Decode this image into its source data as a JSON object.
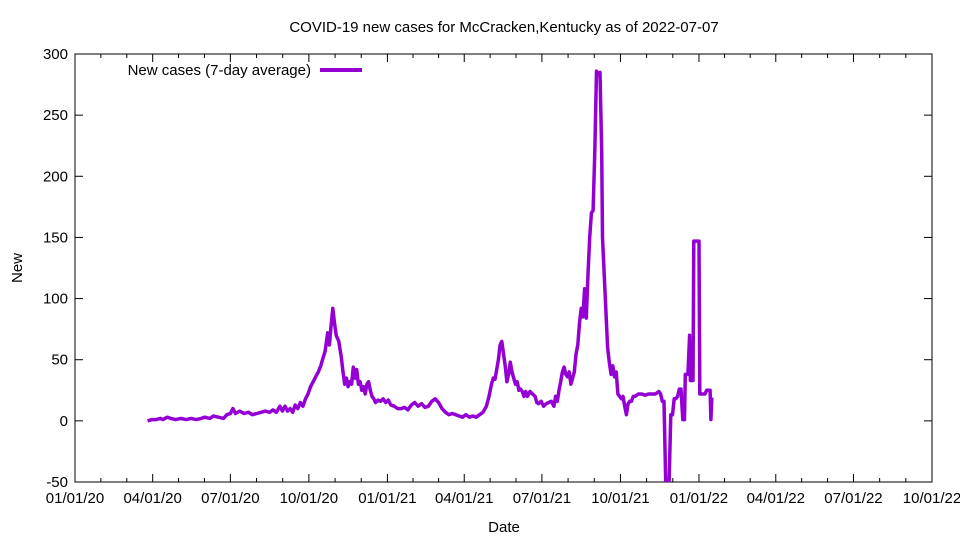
{
  "chart_data": {
    "type": "line",
    "title": "COVID-19 new cases for McCracken,Kentucky as of 2022-07-07",
    "xlabel": "Date",
    "ylabel": "New",
    "ylim": [
      -50,
      300
    ],
    "yticks": [
      -50,
      0,
      50,
      100,
      150,
      200,
      250,
      300
    ],
    "xlim_days": [
      0,
      1004
    ],
    "xticks": [
      {
        "label": "01/01/20",
        "day": 0
      },
      {
        "label": "04/01/20",
        "day": 91
      },
      {
        "label": "07/01/20",
        "day": 182
      },
      {
        "label": "10/01/20",
        "day": 274
      },
      {
        "label": "01/01/21",
        "day": 366
      },
      {
        "label": "04/01/21",
        "day": 456
      },
      {
        "label": "07/01/21",
        "day": 547
      },
      {
        "label": "10/01/21",
        "day": 639
      },
      {
        "label": "01/01/22",
        "day": 731
      },
      {
        "label": "04/01/22",
        "day": 821
      },
      {
        "label": "07/01/22",
        "day": 912
      },
      {
        "label": "10/01/22",
        "day": 1004
      }
    ],
    "legend": {
      "position": "top-left"
    },
    "color": "#9400d3",
    "series": [
      {
        "name": "New cases (7-day average)",
        "x_unit": "days since 2020-01-01",
        "points": [
          [
            85,
            0
          ],
          [
            90,
            1
          ],
          [
            95,
            1
          ],
          [
            100,
            2
          ],
          [
            103,
            1
          ],
          [
            108,
            3
          ],
          [
            112,
            2
          ],
          [
            118,
            1
          ],
          [
            124,
            2
          ],
          [
            130,
            1
          ],
          [
            136,
            2
          ],
          [
            142,
            1
          ],
          [
            148,
            2
          ],
          [
            152,
            3
          ],
          [
            158,
            2
          ],
          [
            162,
            4
          ],
          [
            168,
            3
          ],
          [
            174,
            2
          ],
          [
            178,
            5
          ],
          [
            182,
            6
          ],
          [
            185,
            10
          ],
          [
            188,
            6
          ],
          [
            193,
            8
          ],
          [
            198,
            6
          ],
          [
            203,
            7
          ],
          [
            208,
            5
          ],
          [
            213,
            6
          ],
          [
            218,
            7
          ],
          [
            223,
            8
          ],
          [
            228,
            7
          ],
          [
            232,
            9
          ],
          [
            236,
            7
          ],
          [
            240,
            12
          ],
          [
            243,
            8
          ],
          [
            246,
            12
          ],
          [
            249,
            8
          ],
          [
            252,
            10
          ],
          [
            255,
            7
          ],
          [
            258,
            13
          ],
          [
            261,
            10
          ],
          [
            264,
            15
          ],
          [
            267,
            12
          ],
          [
            270,
            18
          ],
          [
            273,
            22
          ],
          [
            276,
            28
          ],
          [
            279,
            32
          ],
          [
            282,
            36
          ],
          [
            285,
            40
          ],
          [
            288,
            45
          ],
          [
            290,
            50
          ],
          [
            293,
            57
          ],
          [
            296,
            72
          ],
          [
            298,
            62
          ],
          [
            300,
            78
          ],
          [
            302,
            92
          ],
          [
            304,
            80
          ],
          [
            306,
            70
          ],
          [
            309,
            65
          ],
          [
            312,
            52
          ],
          [
            314,
            40
          ],
          [
            316,
            30
          ],
          [
            318,
            35
          ],
          [
            320,
            28
          ],
          [
            322,
            32
          ],
          [
            324,
            30
          ],
          [
            326,
            44
          ],
          [
            328,
            35
          ],
          [
            330,
            42
          ],
          [
            332,
            30
          ],
          [
            334,
            32
          ],
          [
            336,
            25
          ],
          [
            338,
            28
          ],
          [
            340,
            22
          ],
          [
            342,
            30
          ],
          [
            344,
            32
          ],
          [
            346,
            25
          ],
          [
            348,
            20
          ],
          [
            350,
            18
          ],
          [
            352,
            15
          ],
          [
            355,
            17
          ],
          [
            358,
            16
          ],
          [
            361,
            18
          ],
          [
            364,
            15
          ],
          [
            367,
            17
          ],
          [
            370,
            13
          ],
          [
            374,
            12
          ],
          [
            378,
            10
          ],
          [
            382,
            10
          ],
          [
            386,
            11
          ],
          [
            390,
            9
          ],
          [
            394,
            13
          ],
          [
            398,
            15
          ],
          [
            402,
            12
          ],
          [
            406,
            14
          ],
          [
            410,
            11
          ],
          [
            414,
            12
          ],
          [
            418,
            16
          ],
          [
            422,
            18
          ],
          [
            426,
            15
          ],
          [
            430,
            10
          ],
          [
            434,
            7
          ],
          [
            438,
            5
          ],
          [
            442,
            6
          ],
          [
            446,
            5
          ],
          [
            450,
            4
          ],
          [
            454,
            3
          ],
          [
            458,
            5
          ],
          [
            462,
            3
          ],
          [
            466,
            4
          ],
          [
            470,
            3
          ],
          [
            474,
            5
          ],
          [
            478,
            7
          ],
          [
            482,
            12
          ],
          [
            485,
            20
          ],
          [
            488,
            30
          ],
          [
            490,
            35
          ],
          [
            492,
            34
          ],
          [
            494,
            42
          ],
          [
            496,
            50
          ],
          [
            498,
            62
          ],
          [
            500,
            65
          ],
          [
            502,
            55
          ],
          [
            504,
            45
          ],
          [
            506,
            32
          ],
          [
            508,
            38
          ],
          [
            510,
            48
          ],
          [
            512,
            40
          ],
          [
            514,
            35
          ],
          [
            516,
            30
          ],
          [
            518,
            32
          ],
          [
            520,
            25
          ],
          [
            522,
            26
          ],
          [
            524,
            24
          ],
          [
            526,
            20
          ],
          [
            528,
            24
          ],
          [
            530,
            20
          ],
          [
            533,
            24
          ],
          [
            536,
            22
          ],
          [
            539,
            20
          ],
          [
            541,
            15
          ],
          [
            543,
            14
          ],
          [
            546,
            16
          ],
          [
            549,
            12
          ],
          [
            552,
            14
          ],
          [
            555,
            15
          ],
          [
            558,
            16
          ],
          [
            561,
            12
          ],
          [
            563,
            20
          ],
          [
            565,
            16
          ],
          [
            567,
            25
          ],
          [
            569,
            32
          ],
          [
            571,
            40
          ],
          [
            573,
            44
          ],
          [
            575,
            38
          ],
          [
            577,
            36
          ],
          [
            579,
            40
          ],
          [
            581,
            30
          ],
          [
            583,
            35
          ],
          [
            585,
            40
          ],
          [
            587,
            55
          ],
          [
            589,
            62
          ],
          [
            591,
            80
          ],
          [
            593,
            92
          ],
          [
            595,
            85
          ],
          [
            597,
            108
          ],
          [
            599,
            84
          ],
          [
            601,
            120
          ],
          [
            603,
            150
          ],
          [
            605,
            170
          ],
          [
            607,
            172
          ],
          [
            609,
            220
          ],
          [
            611,
            286
          ],
          [
            613,
            283
          ],
          [
            615,
            285
          ],
          [
            617,
            220
          ],
          [
            618,
            150
          ],
          [
            620,
            120
          ],
          [
            622,
            90
          ],
          [
            624,
            60
          ],
          [
            626,
            48
          ],
          [
            628,
            38
          ],
          [
            630,
            45
          ],
          [
            632,
            36
          ],
          [
            634,
            40
          ],
          [
            636,
            22
          ],
          [
            638,
            20
          ],
          [
            640,
            18
          ],
          [
            642,
            20
          ],
          [
            644,
            12
          ],
          [
            646,
            5
          ],
          [
            648,
            14
          ],
          [
            650,
            16
          ],
          [
            652,
            16
          ],
          [
            654,
            20
          ],
          [
            656,
            20
          ],
          [
            660,
            22
          ],
          [
            664,
            22
          ],
          [
            668,
            21
          ],
          [
            672,
            22
          ],
          [
            676,
            22
          ],
          [
            680,
            22
          ],
          [
            684,
            24
          ],
          [
            686,
            22
          ],
          [
            688,
            16
          ],
          [
            690,
            16
          ],
          [
            692,
            -50
          ],
          [
            694,
            -50
          ],
          [
            696,
            -50
          ],
          [
            698,
            5
          ],
          [
            700,
            5
          ],
          [
            702,
            18
          ],
          [
            704,
            18
          ],
          [
            706,
            20
          ],
          [
            708,
            26
          ],
          [
            710,
            26
          ],
          [
            712,
            1
          ],
          [
            714,
            1
          ],
          [
            715,
            38
          ],
          [
            718,
            38
          ],
          [
            720,
            70
          ],
          [
            721,
            33
          ],
          [
            724,
            33
          ],
          [
            725,
            147
          ],
          [
            731,
            147
          ],
          [
            732,
            22
          ],
          [
            736,
            22
          ],
          [
            738,
            22
          ],
          [
            740,
            25
          ],
          [
            744,
            25
          ],
          [
            745,
            1
          ],
          [
            746,
            19
          ]
        ]
      }
    ]
  }
}
